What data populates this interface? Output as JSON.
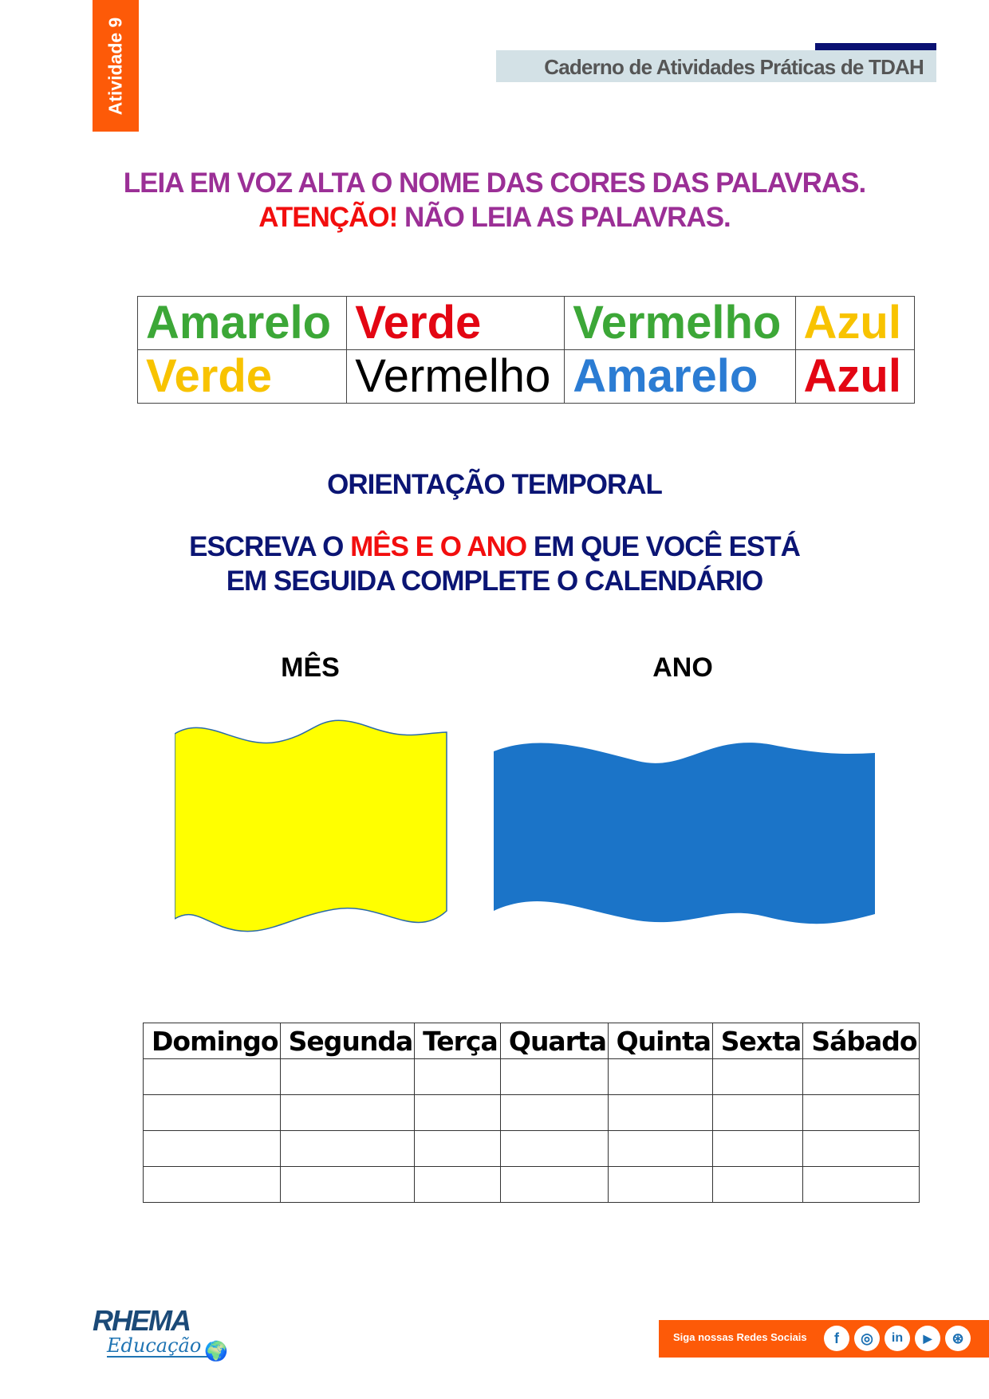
{
  "header": {
    "activity_tab": "Atividade 9",
    "title": "Caderno de Atividades Práticas de TDAH"
  },
  "instructions": {
    "line1": "LEIA EM VOZ ALTA O NOME DAS CORES DAS PALAVRAS.",
    "line2_red": "ATENÇÃO!",
    "line2_rest": " NÃO LEIA AS PALAVRAS."
  },
  "color_words": [
    [
      {
        "word": "Amarelo",
        "color": "#3ca737"
      },
      {
        "word": "Verde",
        "color": "#e30613"
      },
      {
        "word": "Vermelho",
        "color": "#3ca737"
      },
      {
        "word": "Azul",
        "color": "#f8c300"
      }
    ],
    [
      {
        "word": "Verde",
        "color": "#f8c300"
      },
      {
        "word": "Vermelho",
        "color": "#000000",
        "weight": "normal"
      },
      {
        "word": "Amarelo",
        "color": "#2b7cd3"
      },
      {
        "word": "Azul",
        "color": "#e30613"
      }
    ]
  ],
  "section": {
    "title": "ORIENTAÇÃO TEMPORAL",
    "line1_a": "ESCREVA O ",
    "line1_red": "MÊS E O ANO",
    "line1_b": " EM QUE VOCÊ ESTÁ",
    "line2": "EM SEGUIDA COMPLETE O CALENDÁRIO",
    "month_label": "MÊS",
    "year_label": "ANO",
    "month_box_color": "#ffff00",
    "year_box_color": "#1b74c8"
  },
  "calendar": {
    "days": [
      "Domingo",
      "Segunda",
      "Terça",
      "Quarta",
      "Quinta",
      "Sexta",
      "Sábado"
    ],
    "empty_rows": 4
  },
  "footer": {
    "logo_line1": "RHEMA",
    "logo_line2": "Educação",
    "social_label": "Siga nossas Redes Sociais",
    "social_icons": [
      "facebook-icon",
      "instagram-icon",
      "linkedin-icon",
      "youtube-icon",
      "dribbble-icon"
    ]
  }
}
